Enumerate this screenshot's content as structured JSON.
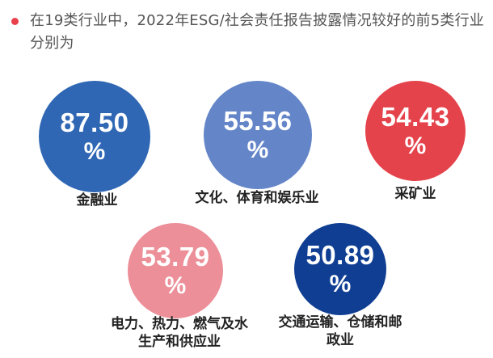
{
  "header": {
    "title": "在19类行业中，2022年ESG/社会责任报告披露情况较好的前5类行业分别为"
  },
  "colors": {
    "bullet": "#e8414b",
    "blue": "#2f67b4",
    "light_blue": "#6486c8",
    "red": "#e5434b",
    "pink": "#ec8f98",
    "navy": "#0f3e93"
  },
  "chart_data": {
    "type": "bubble",
    "unit": "%",
    "items": [
      {
        "value": "87.50",
        "unit": "%",
        "label": "金融业",
        "color": "#2f67b4"
      },
      {
        "value": "55.56",
        "unit": "%",
        "label": "文化、体育和娱乐业",
        "color": "#6486c8"
      },
      {
        "value": "54.43",
        "unit": "%",
        "label": "采矿业",
        "color": "#e5434b"
      },
      {
        "value": "53.79",
        "unit": "%",
        "label": "电力、热力、燃气及水生产和供应业",
        "color": "#ec8f98"
      },
      {
        "value": "50.89",
        "unit": "%",
        "label": "交通运输、仓储和邮政业",
        "color": "#0f3e93"
      }
    ]
  }
}
